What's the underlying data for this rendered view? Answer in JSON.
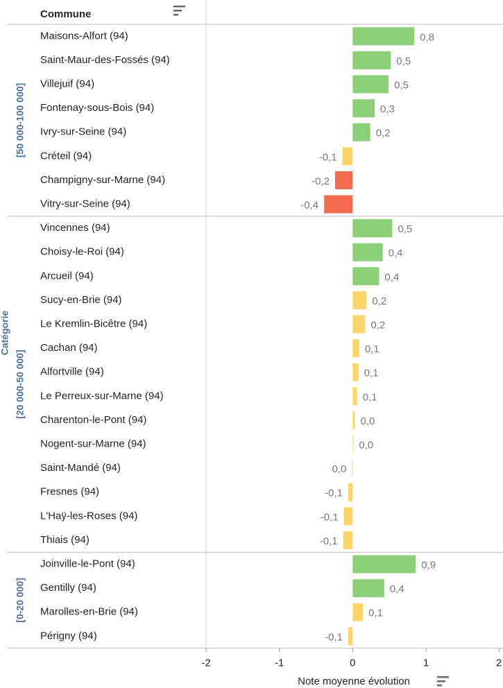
{
  "chart_data": {
    "type": "bar",
    "header": "Commune",
    "group_axis_label": "Catégorie",
    "x_label": "Note moyenne évolution",
    "xlim": [
      -2,
      2.05
    ],
    "xticks": [
      -2,
      -1,
      0,
      1,
      2
    ],
    "groups": [
      {
        "name": "[50 000-100 000]",
        "categories": [
          "Maisons-Alfort (94)",
          "Saint-Maur-des-Fossés (94)",
          "Villejuif (94)",
          "Fontenay-sous-Bois (94)",
          "Ivry-sur-Seine (94)",
          "Créteil (94)",
          "Champigny-sur-Marne (94)",
          "Vitry-sur-Seine (94)"
        ],
        "values": [
          0.84,
          0.52,
          0.49,
          0.3,
          0.24,
          -0.14,
          -0.24,
          -0.39
        ],
        "value_labels": [
          "0,8",
          "0,5",
          "0,5",
          "0,3",
          "0,2",
          "-0,1",
          "-0,2",
          "-0,4"
        ],
        "colors": [
          "#8bcf79",
          "#8bcf79",
          "#8bcf79",
          "#8bcf79",
          "#8bcf79",
          "#fcd56a",
          "#f26a4f",
          "#f26a4f"
        ]
      },
      {
        "name": "[20 000-50 000]",
        "categories": [
          "Vincennes (94)",
          "Choisy-le-Roi (94)",
          "Arcueil (94)",
          "Sucy-en-Brie (94)",
          "Le Kremlin-Bicêtre (94)",
          "Cachan (94)",
          "Alfortville (94)",
          "Le Perreux-sur-Marne (94)",
          "Charenton-le-Pont (94)",
          "Nogent-sur-Marne (94)",
          "Saint-Mandé (94)",
          "Fresnes (94)",
          "L'Haÿ-les-Roses (94)",
          "Thiais (94)"
        ],
        "values": [
          0.54,
          0.41,
          0.36,
          0.19,
          0.17,
          0.09,
          0.08,
          0.06,
          0.03,
          0.01,
          -0.01,
          -0.06,
          -0.12,
          -0.13
        ],
        "value_labels": [
          "0,5",
          "0,4",
          "0,4",
          "0,2",
          "0,2",
          "0,1",
          "0,1",
          "0,1",
          "0,0",
          "0,0",
          "0,0",
          "-0,1",
          "-0,1",
          "-0,1"
        ],
        "colors": [
          "#8bcf79",
          "#8bcf79",
          "#8bcf79",
          "#fcd56a",
          "#fcd56a",
          "#fcd56a",
          "#fcd56a",
          "#fcd56a",
          "#fcd56a",
          "#fcd56a",
          "#fcd56a",
          "#fcd56a",
          "#fcd56a",
          "#fcd56a"
        ]
      },
      {
        "name": "[0-20 000]",
        "categories": [
          "Joinville-le-Pont (94)",
          "Gentilly (94)",
          "Marolles-en-Brie (94)",
          "Périgny (94)"
        ],
        "values": [
          0.86,
          0.43,
          0.14,
          -0.06
        ],
        "value_labels": [
          "0,9",
          "0,4",
          "0,1",
          "-0,1"
        ],
        "colors": [
          "#8bcf79",
          "#8bcf79",
          "#fcd56a",
          "#fcd56a"
        ]
      }
    ]
  }
}
